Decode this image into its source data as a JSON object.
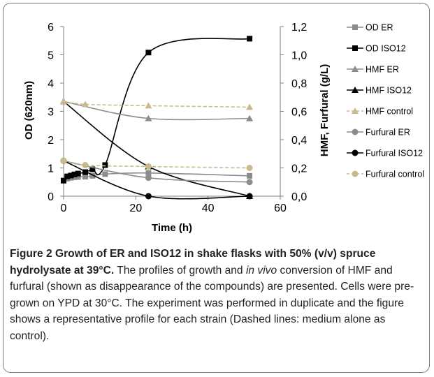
{
  "chart_data": {
    "type": "line",
    "xlabel": "Time (h)",
    "ylabel_left": "OD (620nm)",
    "ylabel_right": "HMF, Furfural (g/L)",
    "xlim": [
      0,
      60
    ],
    "ylim_left": [
      0,
      6
    ],
    "ylim_right": [
      0,
      1.2
    ],
    "x_ticks": [
      "0",
      "20",
      "40",
      "60"
    ],
    "y_left_ticks": [
      "0",
      "1",
      "2",
      "3",
      "4",
      "5",
      "6"
    ],
    "y_right_ticks": [
      "0,0",
      "0,2",
      "0,4",
      "0,6",
      "0,8",
      "1,0",
      "1,2"
    ],
    "grid": false,
    "legend_position": "right",
    "series": [
      {
        "name": "OD ER",
        "axis": "left",
        "color": "#8c8c8c",
        "marker": "square",
        "dash": false,
        "x": [
          0,
          1,
          2,
          3,
          4,
          6,
          8,
          11.5,
          23.5,
          51.5
        ],
        "y": [
          0.55,
          0.62,
          0.65,
          0.67,
          0.68,
          0.69,
          0.72,
          0.78,
          0.82,
          0.72
        ]
      },
      {
        "name": "OD ISO12",
        "axis": "left",
        "color": "#000000",
        "marker": "square",
        "dash": false,
        "x": [
          0,
          1,
          2,
          3,
          4,
          6,
          8,
          11.5,
          23.5,
          51.5
        ],
        "y": [
          0.55,
          0.7,
          0.73,
          0.77,
          0.8,
          0.85,
          0.95,
          1.1,
          5.08,
          5.57
        ]
      },
      {
        "name": "HMF ER",
        "axis": "right",
        "color": "#8c8c8c",
        "marker": "triangle",
        "dash": false,
        "x": [
          0,
          23.5,
          51.5
        ],
        "y": [
          0.67,
          0.55,
          0.55
        ]
      },
      {
        "name": "HMF ISO12",
        "axis": "right",
        "color": "#000000",
        "marker": "triangle",
        "dash": false,
        "x": [
          0,
          23.5,
          51.5
        ],
        "y": [
          0.67,
          0.21,
          0.0
        ]
      },
      {
        "name": "HMF control",
        "axis": "right",
        "color": "#c9b98c",
        "marker": "triangle",
        "dash": true,
        "x": [
          0,
          6,
          23.5,
          51.5
        ],
        "y": [
          0.67,
          0.65,
          0.64,
          0.63
        ]
      },
      {
        "name": "Furfural ER",
        "axis": "right",
        "color": "#8c8c8c",
        "marker": "circle",
        "dash": false,
        "x": [
          0,
          23.5,
          51.5
        ],
        "y": [
          0.25,
          0.13,
          0.1
        ]
      },
      {
        "name": "Furfural ISO12",
        "axis": "right",
        "color": "#000000",
        "marker": "circle",
        "dash": false,
        "x": [
          0,
          23.5,
          51.5
        ],
        "y": [
          0.25,
          0.0,
          0.0
        ]
      },
      {
        "name": "Furfural control",
        "axis": "right",
        "color": "#c9b98c",
        "marker": "circle",
        "dash": true,
        "x": [
          0,
          6,
          23.5,
          51.5
        ],
        "y": [
          0.25,
          0.22,
          0.21,
          0.2
        ]
      }
    ]
  },
  "caption": {
    "bold": "Figure 2 Growth of ER and ISO12 in shake flasks with 50% (v/v) spruce hydrolysate at 39°C.",
    "text1": " The profiles of growth and ",
    "italic": "in vivo",
    "text2": " conversion of HMF and furfural (shown as disappearance of the compounds) are presented. Cells were pre-grown on YPD at 30°C. The experiment was performed in duplicate and the figure shows a representative profile for each strain (Dashed lines: medium alone as control)."
  }
}
